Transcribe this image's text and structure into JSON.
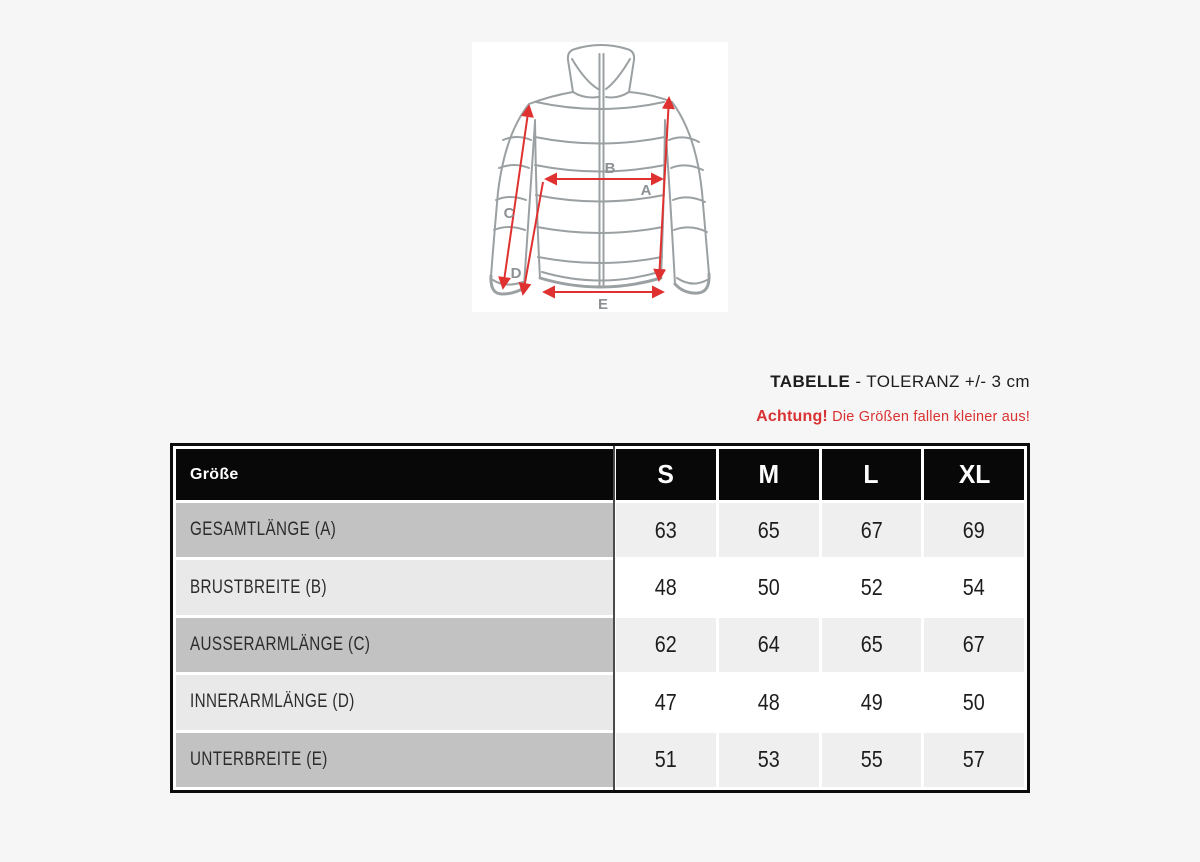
{
  "colors": {
    "page-bg": "#f6f6f6",
    "accent-red": "#d93232",
    "arrow-red": "#e03131",
    "jacket-line": "#9ba0a2",
    "diagram-label": "#8d9194",
    "table-border": "#0c0c0c",
    "header-bg": "#080808",
    "label-cell-dark": "#c2c2c2",
    "label-cell-light": "#e9e9e9",
    "value-cell-grey": "#efefef",
    "value-cell-white": "#ffffff",
    "column-divider": "#4a4a4a"
  },
  "diagram": {
    "labels": {
      "A": "A",
      "B": "B",
      "C": "C",
      "D": "D",
      "E": "E"
    }
  },
  "note": {
    "title_bold": "TABELLE",
    "title_rest": " - TOLERANZ +/- 3 cm",
    "warning_bold": "Achtung!",
    "warning_rest": " Die Größen fallen kleiner aus!"
  },
  "table": {
    "corner_label": "Größe",
    "columns": [
      "S",
      "M",
      "L",
      "XL"
    ],
    "rows": [
      {
        "label": "GESAMTLÄNGE (A)",
        "values": [
          "63",
          "65",
          "67",
          "69"
        ]
      },
      {
        "label": "BRUSTBREITE (B)",
        "values": [
          "48",
          "50",
          "52",
          "54"
        ]
      },
      {
        "label": "AUSSERARMLÄNGE (C)",
        "values": [
          "62",
          "64",
          "65",
          "67"
        ]
      },
      {
        "label": "INNERARMLÄNGE (D)",
        "values": [
          "47",
          "48",
          "49",
          "50"
        ]
      },
      {
        "label": "UNTERBREITE (E)",
        "values": [
          "51",
          "53",
          "55",
          "57"
        ]
      }
    ]
  }
}
